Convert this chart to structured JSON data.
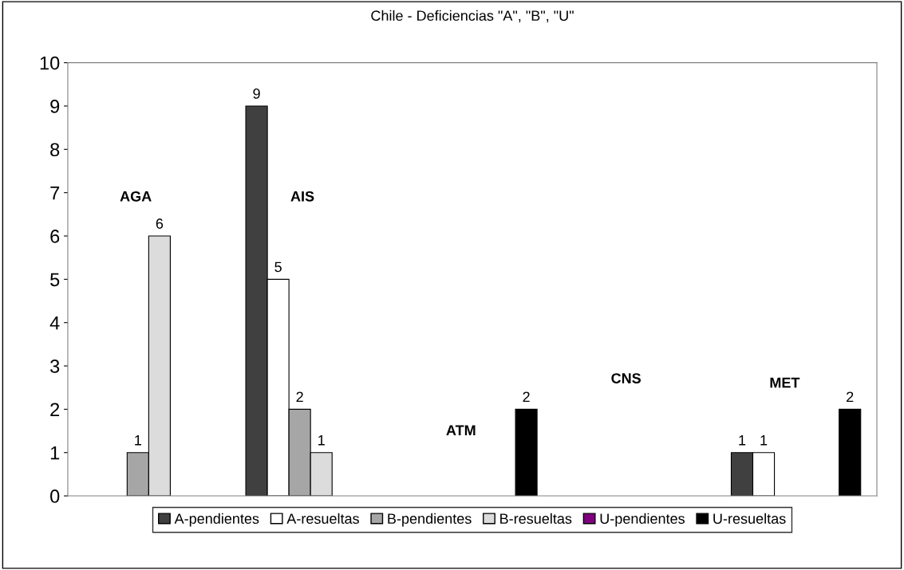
{
  "chart_data": {
    "type": "bar",
    "title": "Chile - Deficiencias \"A\", \"B\", \"U\"",
    "categories": [
      "AGA",
      "AIS",
      "ATM",
      "CNS",
      "MET"
    ],
    "series": [
      {
        "name": "A-pendientes",
        "color": "#404040",
        "values": [
          null,
          9,
          null,
          null,
          1
        ]
      },
      {
        "name": "A-resueltas",
        "color": "#ffffff",
        "values": [
          null,
          5,
          null,
          null,
          1
        ]
      },
      {
        "name": "B-pendientes",
        "color": "#a6a6a6",
        "values": [
          1,
          2,
          null,
          null,
          null
        ]
      },
      {
        "name": "B-resueltas",
        "color": "#dcdcdc",
        "values": [
          6,
          1,
          null,
          null,
          null
        ]
      },
      {
        "name": "U-pendientes",
        "color": "#800080",
        "values": [
          null,
          null,
          null,
          null,
          null
        ]
      },
      {
        "name": "U-resueltas",
        "color": "#000000",
        "values": [
          null,
          null,
          2,
          null,
          2
        ]
      }
    ],
    "ylim": [
      0,
      10
    ],
    "yticks": [
      0,
      1,
      2,
      3,
      4,
      5,
      6,
      7,
      8,
      9,
      10
    ],
    "grid": false,
    "legend": "bottom",
    "data_labels": true
  }
}
